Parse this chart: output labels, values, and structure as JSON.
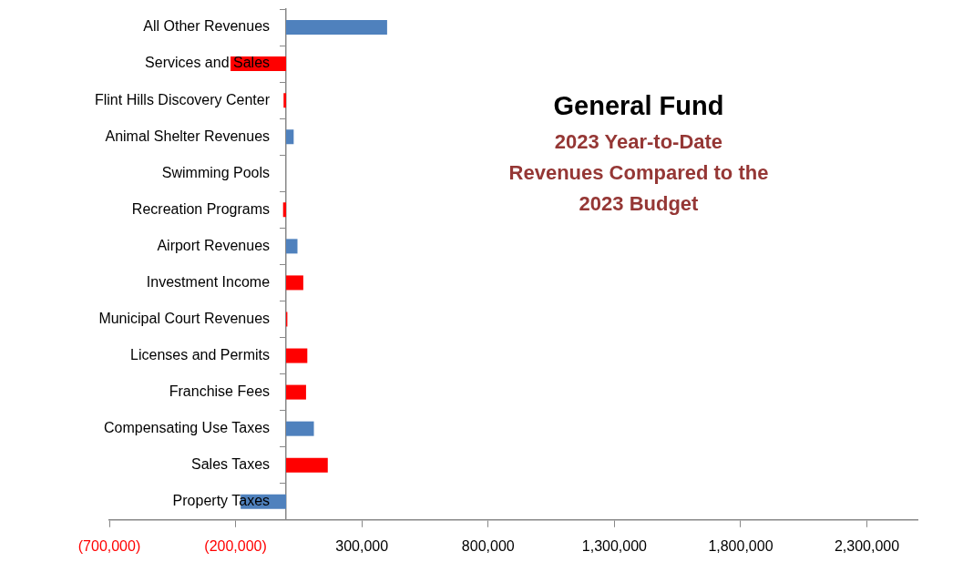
{
  "chart_data": {
    "type": "bar",
    "orientation": "horizontal",
    "title": "General Fund",
    "subtitle": "2023 Year-to-Date Revenues Compared to the 2023 Budget",
    "categories": [
      "All Other Revenues",
      "Services and Sales",
      "Flint Hills Discovery Center",
      "Animal Shelter Revenues",
      "Swimming Pools",
      "Recreation Programs",
      "Airport Revenues",
      "Investment Income",
      "Municipal Court Revenues",
      "Licenses and Permits",
      "Franchise Fees",
      "Compensating Use Taxes",
      "Sales Taxes",
      "Property Taxes"
    ],
    "values": [
      400000,
      -220000,
      -10000,
      30000,
      0,
      -12000,
      45000,
      68000,
      5000,
      84000,
      79000,
      110000,
      165000,
      -180000
    ],
    "colors": [
      "#4f81bd",
      "#ff0000",
      "#ff0000",
      "#4f81bd",
      "#4f81bd",
      "#ff0000",
      "#4f81bd",
      "#ff0000",
      "#ff0000",
      "#ff0000",
      "#ff0000",
      "#4f81bd",
      "#ff0000",
      "#4f81bd"
    ],
    "xlim": [
      -700000,
      2500000
    ],
    "xticks": [
      {
        "value": -700000,
        "label": "(700,000)"
      },
      {
        "value": -200000,
        "label": "(200,000)"
      },
      {
        "value": 300000,
        "label": "300,000"
      },
      {
        "value": 800000,
        "label": "800,000"
      },
      {
        "value": 1300000,
        "label": "1,300,000"
      },
      {
        "value": 1800000,
        "label": "1,800,000"
      },
      {
        "value": 2300000,
        "label": "2,300,000"
      }
    ],
    "grid": false,
    "legend": false
  }
}
